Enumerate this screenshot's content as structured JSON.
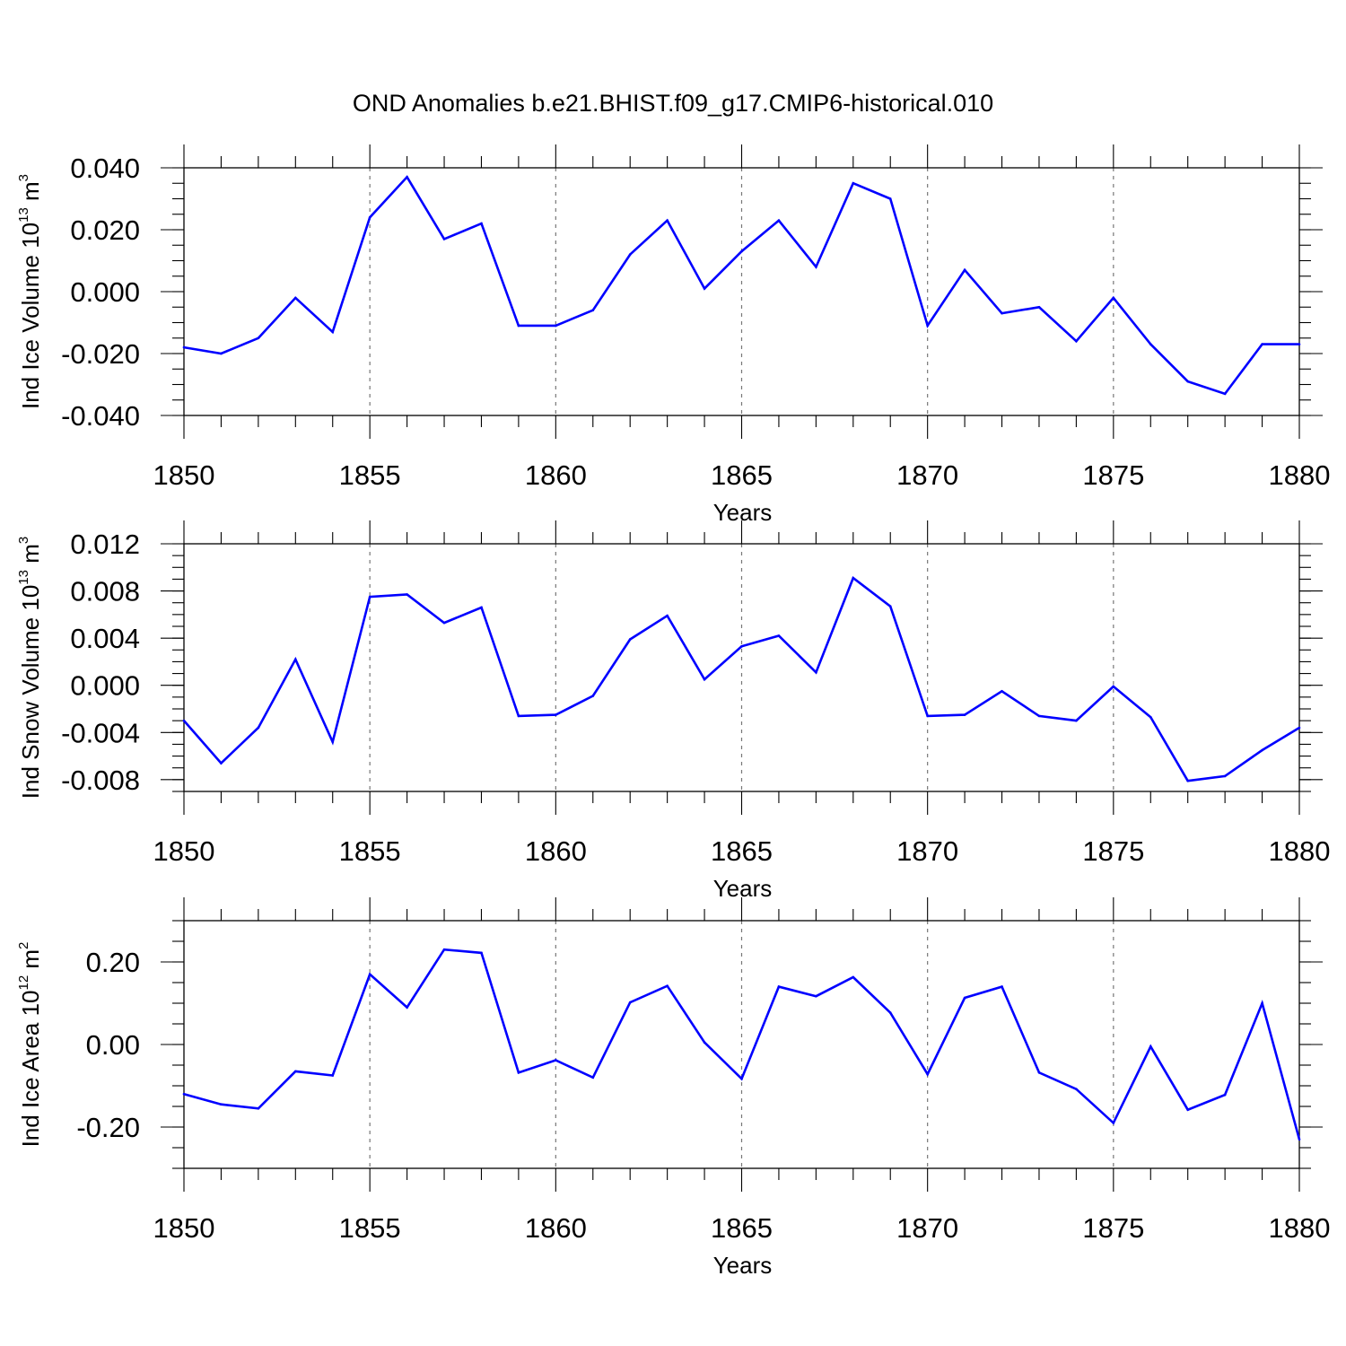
{
  "title": "OND Anomalies b.e21.BHIST.f09_g17.CMIP6-historical.010",
  "colors": {
    "line": "#0000ff",
    "axis": "#000000",
    "grid": "#777777"
  },
  "chart_data": [
    {
      "type": "line",
      "ylabel": {
        "prefix": "Ind Ice Volume 10",
        "exp": "13",
        "unit": " m",
        "unit_exp": "3"
      },
      "xlabel": "Years",
      "xlim": [
        1850,
        1880
      ],
      "ylim": [
        -0.04,
        0.04
      ],
      "xticks": [
        "1850",
        "1855",
        "1860",
        "1865",
        "1870",
        "1875",
        "1880"
      ],
      "yticks": [
        {
          "value": 0.04,
          "label": "0.040"
        },
        {
          "value": 0.02,
          "label": "0.020"
        },
        {
          "value": 0.0,
          "label": "0.000"
        },
        {
          "value": -0.02,
          "label": "-0.020"
        },
        {
          "value": -0.04,
          "label": "-0.040"
        }
      ],
      "y_minor_step": 0.005,
      "x": [
        1850,
        1851,
        1852,
        1853,
        1854,
        1855,
        1856,
        1857,
        1858,
        1859,
        1860,
        1861,
        1862,
        1863,
        1864,
        1865,
        1866,
        1867,
        1868,
        1869,
        1870,
        1871,
        1872,
        1873,
        1874,
        1875,
        1876,
        1877,
        1878,
        1879,
        1880
      ],
      "values": [
        -0.018,
        -0.02,
        -0.015,
        -0.002,
        -0.013,
        0.024,
        0.037,
        0.017,
        0.022,
        -0.011,
        -0.011,
        -0.006,
        0.012,
        0.023,
        0.001,
        0.013,
        0.023,
        0.008,
        0.035,
        0.03,
        -0.011,
        0.007,
        -0.007,
        -0.005,
        -0.016,
        -0.002,
        -0.017,
        -0.029,
        -0.033,
        -0.017,
        -0.017
      ]
    },
    {
      "type": "line",
      "ylabel": {
        "prefix": "Ind Snow Volume 10",
        "exp": "13",
        "unit": " m",
        "unit_exp": "3"
      },
      "xlabel": "Years",
      "xlim": [
        1850,
        1880
      ],
      "ylim": [
        -0.009,
        0.012
      ],
      "xticks": [
        "1850",
        "1855",
        "1860",
        "1865",
        "1870",
        "1875",
        "1880"
      ],
      "yticks": [
        {
          "value": 0.012,
          "label": "0.012"
        },
        {
          "value": 0.008,
          "label": "0.008"
        },
        {
          "value": 0.004,
          "label": "0.004"
        },
        {
          "value": 0.0,
          "label": "0.000"
        },
        {
          "value": -0.004,
          "label": "-0.004"
        },
        {
          "value": -0.008,
          "label": "-0.008"
        }
      ],
      "y_minor_step": 0.001,
      "x": [
        1850,
        1851,
        1852,
        1853,
        1854,
        1855,
        1856,
        1857,
        1858,
        1859,
        1860,
        1861,
        1862,
        1863,
        1864,
        1865,
        1866,
        1867,
        1868,
        1869,
        1870,
        1871,
        1872,
        1873,
        1874,
        1875,
        1876,
        1877,
        1878,
        1879,
        1880
      ],
      "values": [
        -0.003,
        -0.0066,
        -0.0036,
        0.0022,
        -0.0048,
        0.0075,
        0.0077,
        0.0053,
        0.0066,
        -0.0026,
        -0.0025,
        -0.0009,
        0.0039,
        0.0059,
        0.0005,
        0.0033,
        0.0042,
        0.0011,
        0.0091,
        0.0067,
        -0.0026,
        -0.0025,
        -0.0005,
        -0.0026,
        -0.003,
        -0.0001,
        -0.0027,
        -0.0081,
        -0.0077,
        -0.0055,
        -0.0036
      ]
    },
    {
      "type": "line",
      "ylabel": {
        "prefix": "Ind Ice Area 10",
        "exp": "12",
        "unit": " m",
        "unit_exp": "2"
      },
      "xlabel": "Years",
      "xlim": [
        1850,
        1880
      ],
      "ylim": [
        -0.3,
        0.3
      ],
      "xticks": [
        "1850",
        "1855",
        "1860",
        "1865",
        "1870",
        "1875",
        "1880"
      ],
      "yticks": [
        {
          "value": 0.2,
          "label": "0.20"
        },
        {
          "value": 0.0,
          "label": "0.00"
        },
        {
          "value": -0.2,
          "label": "-0.20"
        }
      ],
      "y_minor_step": 0.05,
      "x": [
        1850,
        1851,
        1852,
        1853,
        1854,
        1855,
        1856,
        1857,
        1858,
        1859,
        1860,
        1861,
        1862,
        1863,
        1864,
        1865,
        1866,
        1867,
        1868,
        1869,
        1870,
        1871,
        1872,
        1873,
        1874,
        1875,
        1876,
        1877,
        1878,
        1879,
        1880
      ],
      "values": [
        -0.12,
        -0.145,
        -0.155,
        -0.065,
        -0.075,
        0.17,
        0.09,
        0.23,
        0.222,
        -0.068,
        -0.038,
        -0.08,
        0.102,
        0.142,
        0.005,
        -0.083,
        0.14,
        0.117,
        0.163,
        0.077,
        -0.072,
        0.113,
        0.14,
        -0.068,
        -0.108,
        -0.19,
        -0.005,
        -0.158,
        -0.122,
        0.1,
        -0.23
      ]
    }
  ]
}
